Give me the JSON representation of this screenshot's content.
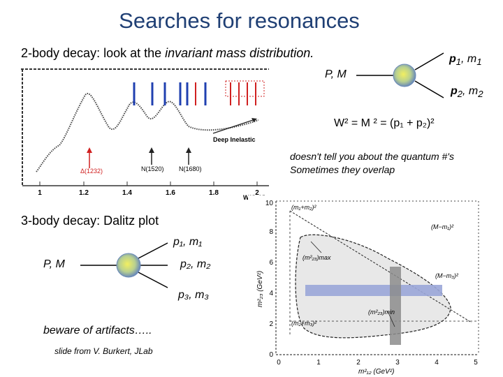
{
  "slide": {
    "title": "Searches for resonances",
    "two_body": {
      "prefix": "2-body decay: look at the ",
      "emph": "invariant mass distribution.",
      "p1": "p",
      "p1_sub": "1",
      "p1_tail": ", m",
      "m1_sub": "1",
      "parent": "P, M",
      "p2": "p",
      "p2_sub": "2",
      "p2_tail": ", m",
      "m2_sub": "2",
      "formula": "W² = M ² = (p₁ + p₂)²",
      "note_line1": "doesn't tell you about the quantum #'s",
      "note_line2": "Sometimes they overlap"
    },
    "plot1": {
      "deep_inelastic": "Deep Inelastic",
      "delta": "Δ(1232)",
      "n1520": "N(1520)",
      "n1680": "N(1680)",
      "ticks": [
        "1",
        "1.2",
        "1.4",
        "1.6",
        "1.8",
        "2"
      ],
      "xlabel": "W(GeV)"
    },
    "three_body": {
      "heading": "3-body decay: Dalitz plot",
      "parent": "P, M",
      "d1": "p₁, m₁",
      "d2": "p₂, m₂",
      "d3": "p₃, m₃",
      "warning": "beware of artifacts…..",
      "credit": "slide from V. Burkert, JLab"
    },
    "dalitz": {
      "yticks": [
        "0",
        "2",
        "4",
        "6",
        "8",
        "10"
      ],
      "xticks": [
        "0",
        "1",
        "2",
        "3",
        "4",
        "5"
      ],
      "ylabel": "m²₂₃ (GeV²)",
      "xlabel": "m²₁₂ (GeV²)",
      "l_top": "(m₁+m₂)²",
      "l_top_right": "(M−m₁)²",
      "l_max": "(m²₂₃)max",
      "l_right": "(M−m₃)²",
      "l_min": "(m²₂₃)min",
      "l_bottom_left": "(m₂+m₃)²"
    }
  },
  "colors": {
    "title": "#1f3f74",
    "band": "#9aa6d8",
    "vband": "#8c8c8c",
    "arrow_red": "#d02020",
    "arrow_blue": "#2040b0"
  }
}
